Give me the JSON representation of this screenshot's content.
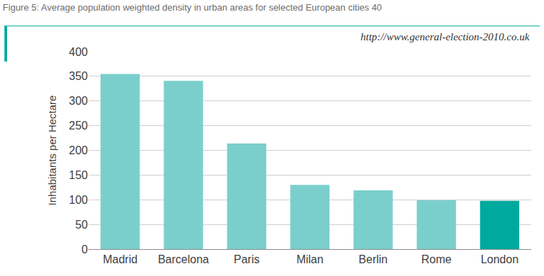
{
  "chart_data": {
    "type": "bar",
    "title": "Figure 5: Average population weighted density in urban areas for selected European cities 40",
    "y_label": "Inhabitants per Hectare",
    "annotations": [
      "http://www.general-election-2010.co.uk"
    ],
    "categories": [
      "Madrid",
      "Barcelona",
      "Paris",
      "Milan",
      "Berlin",
      "Rome",
      "London"
    ],
    "values": [
      355,
      341,
      214,
      130,
      119,
      99,
      98
    ],
    "colors": [
      "#7acfcc",
      "#7acfcc",
      "#7acfcc",
      "#7acfcc",
      "#7acfcc",
      "#7acfcc",
      "#00a99d"
    ],
    "ylim": [
      0,
      400
    ],
    "yticks": [
      0,
      50,
      100,
      150,
      200,
      250,
      300,
      350,
      400
    ],
    "grid": true
  }
}
